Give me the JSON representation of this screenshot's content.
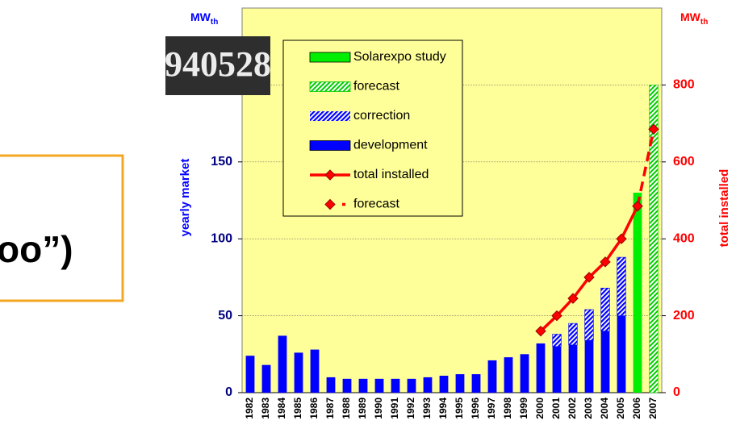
{
  "captcha_text": "940528",
  "slide_fragment": "oo”)",
  "chart_data": {
    "type": "bar",
    "y_title": "yearly market",
    "y2_title": "total installed",
    "y_unit": "MW",
    "y_unit_sub": "th",
    "y2_unit": "MW",
    "y2_unit_sub": "th",
    "categories": [
      "1982",
      "1983",
      "1984",
      "1985",
      "1986",
      "1987",
      "1988",
      "1989",
      "1990",
      "1991",
      "1992",
      "1993",
      "1994",
      "1995",
      "1996",
      "1997",
      "1998",
      "1999",
      "2000",
      "2001",
      "2002",
      "2003",
      "2004",
      "2005",
      "2006",
      "2007"
    ],
    "ylim": [
      0,
      250
    ],
    "yticks": [
      0,
      50,
      100,
      150
    ],
    "y2lim": [
      0,
      1000
    ],
    "y2ticks": [
      0,
      200,
      400,
      600,
      800
    ],
    "gridlines": [
      50,
      100,
      150,
      200
    ],
    "grid": true,
    "background": "#ffff99",
    "series": [
      {
        "name": "Solarexpo study",
        "type": "bar",
        "color": "#00ee00",
        "hatched": false,
        "values": [
          null,
          null,
          null,
          null,
          null,
          null,
          null,
          null,
          null,
          null,
          null,
          null,
          null,
          null,
          null,
          null,
          null,
          null,
          null,
          null,
          null,
          null,
          null,
          null,
          130,
          null
        ]
      },
      {
        "name": "forecast",
        "type": "bar",
        "color": "#00cc00",
        "hatched": true,
        "values": [
          null,
          null,
          null,
          null,
          null,
          null,
          null,
          null,
          null,
          null,
          null,
          null,
          null,
          null,
          null,
          null,
          null,
          null,
          null,
          null,
          null,
          null,
          null,
          null,
          null,
          200
        ]
      },
      {
        "name": "correction",
        "type": "bar",
        "color": "#0000ff",
        "hatched": true,
        "values": [
          null,
          null,
          null,
          null,
          null,
          null,
          null,
          null,
          null,
          null,
          null,
          null,
          null,
          null,
          null,
          null,
          null,
          null,
          null,
          8,
          14,
          20,
          28,
          38,
          null,
          null
        ]
      },
      {
        "name": "development",
        "type": "bar",
        "color": "#0000ff",
        "hatched": false,
        "values": [
          24,
          18,
          37,
          26,
          28,
          10,
          9,
          9,
          9,
          9,
          9,
          10,
          11,
          12,
          12,
          21,
          23,
          25,
          32,
          30,
          31,
          34,
          40,
          50,
          null,
          null
        ]
      },
      {
        "name": "total installed",
        "type": "line",
        "axis": "y2",
        "color": "#ff0000",
        "dashed": false,
        "values": [
          null,
          null,
          null,
          null,
          null,
          null,
          null,
          null,
          null,
          null,
          null,
          null,
          null,
          null,
          null,
          null,
          null,
          null,
          160,
          200,
          245,
          300,
          340,
          400,
          485,
          null
        ]
      },
      {
        "name": "forecast",
        "type": "line",
        "axis": "y2",
        "color": "#ff0000",
        "dashed": true,
        "values": [
          null,
          null,
          null,
          null,
          null,
          null,
          null,
          null,
          null,
          null,
          null,
          null,
          null,
          null,
          null,
          null,
          null,
          null,
          null,
          null,
          null,
          null,
          null,
          null,
          485,
          685
        ]
      }
    ]
  }
}
